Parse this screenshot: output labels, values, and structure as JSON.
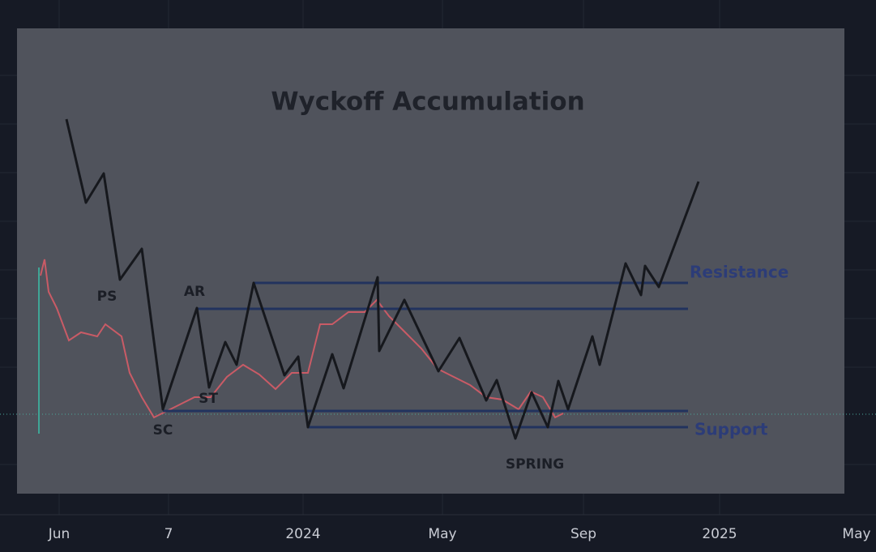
{
  "title": "Wyckoff Accumulation",
  "annotations": {
    "ps": "PS",
    "ar": "AR",
    "st": "ST",
    "sc": "SC",
    "spring": "SPRING"
  },
  "levels": {
    "resistance": "Resistance",
    "support": "Support"
  },
  "x_axis": {
    "labels": [
      "Jun",
      "7",
      "2024",
      "May",
      "Sep",
      "2025",
      "May"
    ]
  }
}
